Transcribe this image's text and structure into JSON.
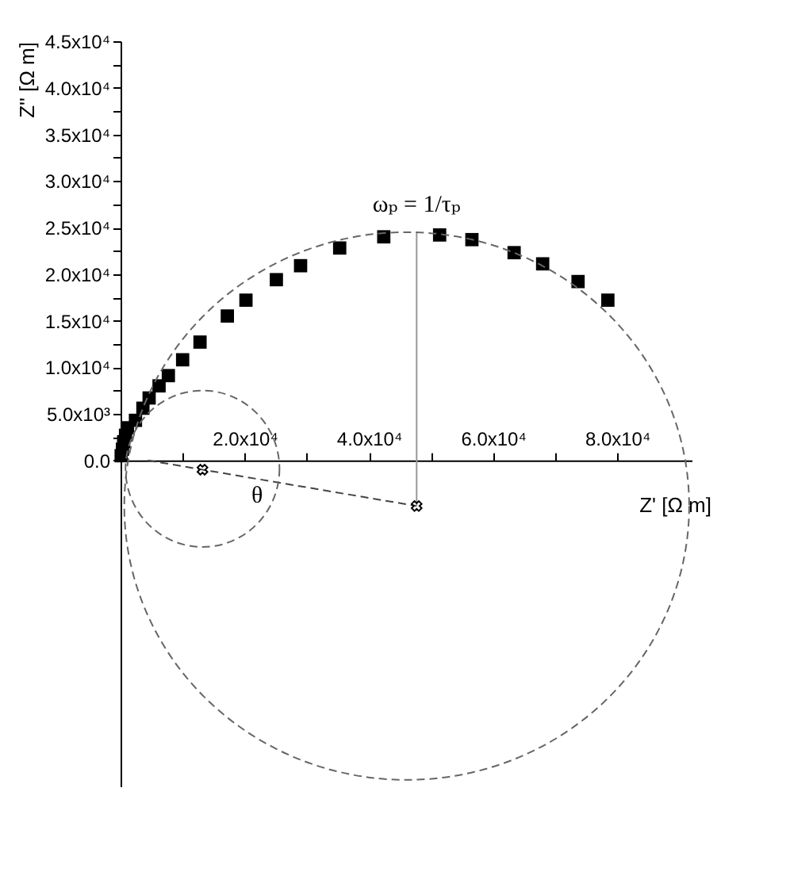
{
  "chart_data": {
    "type": "scatter",
    "xlabel": "Z' [Ω m]",
    "ylabel": "Z'' [Ω m]",
    "xlim": [
      0,
      92000
    ],
    "ylim": [
      -35000,
      45000
    ],
    "xticks": [
      {
        "value": 10000,
        "label": null
      },
      {
        "value": 20000,
        "label": "2.0x10⁴"
      },
      {
        "value": 30000,
        "label": null
      },
      {
        "value": 40000,
        "label": "4.0x10⁴"
      },
      {
        "value": 50000,
        "label": null
      },
      {
        "value": 60000,
        "label": "6.0x10⁴"
      },
      {
        "value": 70000,
        "label": null
      },
      {
        "value": 80000,
        "label": "8.0x10⁴"
      }
    ],
    "yticks": [
      {
        "value": 0,
        "label": "0.0"
      },
      {
        "value": 2500,
        "label": null
      },
      {
        "value": 5000,
        "label": "5.0x10³"
      },
      {
        "value": 7500,
        "label": null
      },
      {
        "value": 10000,
        "label": "1.0x10⁴"
      },
      {
        "value": 12500,
        "label": null
      },
      {
        "value": 15000,
        "label": "1.5x10⁴"
      },
      {
        "value": 17500,
        "label": null
      },
      {
        "value": 20000,
        "label": "2.0x10⁴"
      },
      {
        "value": 22500,
        "label": null
      },
      {
        "value": 25000,
        "label": "2.5x10⁴"
      },
      {
        "value": 27500,
        "label": null
      },
      {
        "value": 30000,
        "label": "3.0x10⁴"
      },
      {
        "value": 32500,
        "label": null
      },
      {
        "value": 35000,
        "label": "3.5x10⁴"
      },
      {
        "value": 37500,
        "label": null
      },
      {
        "value": 40000,
        "label": "4.0x10⁴"
      },
      {
        "value": 42500,
        "label": null
      },
      {
        "value": 45000,
        "label": "4.5x10⁴"
      }
    ],
    "marker": "square",
    "grid": false,
    "series": [
      {
        "color": "#000000",
        "x": [
          100,
          300,
          500,
          800,
          1100,
          2400,
          3600,
          4600,
          6200,
          7700,
          10000,
          12800,
          17200,
          20200,
          25100,
          29000,
          35300,
          42400,
          51400,
          56600,
          63400,
          68000,
          73700,
          78500
        ],
        "values": [
          500,
          1200,
          2000,
          2700,
          3500,
          4300,
          5600,
          6700,
          8000,
          9100,
          10800,
          12700,
          15500,
          17200,
          19400,
          20900,
          22800,
          24000,
          24200,
          23700,
          22300,
          21100,
          19200,
          17200
        ]
      },
      {
        "type": "line",
        "color": "#444444",
        "line_style": "dashed",
        "marker": "none",
        "x": [
          4400,
          47700
        ],
        "values": [
          0,
          -4900
        ]
      },
      {
        "type": "line",
        "color": "#999999",
        "line_style": "solid",
        "marker": "none",
        "x": [
          47700,
          47700
        ],
        "values": [
          24500,
          -4900
        ]
      },
      {
        "type": "scatter",
        "color": "#000000",
        "marker": "cross",
        "x": [
          13200,
          47700
        ],
        "values": [
          -1000,
          -4900
        ]
      }
    ],
    "annotations": [
      {
        "text": "ωₚ = 1/τₚ",
        "x": 47700,
        "y": 24500
      },
      {
        "text": "θ",
        "x": 22000,
        "y": -2000
      }
    ]
  }
}
